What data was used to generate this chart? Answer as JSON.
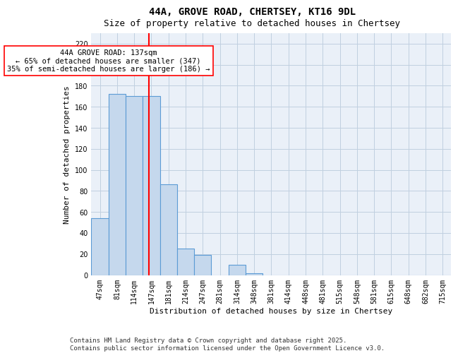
{
  "title1": "44A, GROVE ROAD, CHERTSEY, KT16 9DL",
  "title2": "Size of property relative to detached houses in Chertsey",
  "xlabel": "Distribution of detached houses by size in Chertsey",
  "ylabel": "Number of detached properties",
  "bar_labels": [
    "47sqm",
    "81sqm",
    "114sqm",
    "147sqm",
    "181sqm",
    "214sqm",
    "247sqm",
    "281sqm",
    "314sqm",
    "348sqm",
    "381sqm",
    "414sqm",
    "448sqm",
    "481sqm",
    "515sqm",
    "548sqm",
    "581sqm",
    "615sqm",
    "648sqm",
    "682sqm",
    "715sqm"
  ],
  "bar_values": [
    54,
    172,
    170,
    170,
    86,
    25,
    19,
    0,
    10,
    2,
    0,
    0,
    0,
    0,
    0,
    0,
    0,
    0,
    0,
    0,
    0
  ],
  "bar_color": "#c5d8ed",
  "bar_edge_color": "#5b9bd5",
  "vline_color": "red",
  "annotation_text": "44A GROVE ROAD: 137sqm\n← 65% of detached houses are smaller (347)\n35% of semi-detached houses are larger (186) →",
  "annotation_box_color": "white",
  "annotation_box_edge": "red",
  "ylim": [
    0,
    230
  ],
  "yticks": [
    0,
    20,
    40,
    60,
    80,
    100,
    120,
    140,
    160,
    180,
    200,
    220
  ],
  "grid_color": "#c0d0e0",
  "bg_color": "#eaf0f8",
  "footer": "Contains HM Land Registry data © Crown copyright and database right 2025.\nContains public sector information licensed under the Open Government Licence v3.0.",
  "title_fontsize": 10,
  "subtitle_fontsize": 9,
  "axis_label_fontsize": 8,
  "tick_fontsize": 7,
  "annotation_fontsize": 7.5,
  "footer_fontsize": 6.5
}
